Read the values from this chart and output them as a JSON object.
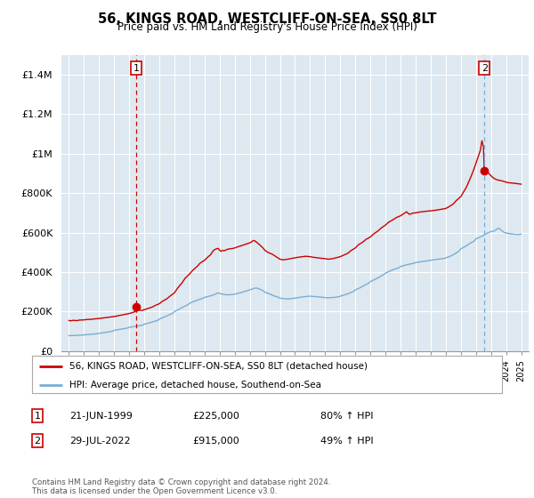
{
  "title": "56, KINGS ROAD, WESTCLIFF-ON-SEA, SS0 8LT",
  "subtitle": "Price paid vs. HM Land Registry's House Price Index (HPI)",
  "legend_label_red": "56, KINGS ROAD, WESTCLIFF-ON-SEA, SS0 8LT (detached house)",
  "legend_label_blue": "HPI: Average price, detached house, Southend-on-Sea",
  "annotation1_date": "21-JUN-1999",
  "annotation1_price": "£225,000",
  "annotation1_hpi": "80% ↑ HPI",
  "annotation1_year": 1999.47,
  "annotation1_value": 225000,
  "annotation2_date": "29-JUL-2022",
  "annotation2_price": "£915,000",
  "annotation2_hpi": "49% ↑ HPI",
  "annotation2_year": 2022.56,
  "annotation2_value": 915000,
  "ylabel_ticks": [
    "£0",
    "£200K",
    "£400K",
    "£600K",
    "£800K",
    "£1M",
    "£1.2M",
    "£1.4M"
  ],
  "ytick_values": [
    0,
    200000,
    400000,
    600000,
    800000,
    1000000,
    1200000,
    1400000
  ],
  "ylim": [
    0,
    1500000
  ],
  "xlim_start": 1994.5,
  "xlim_end": 2025.5,
  "chart_bg_color": "#dde8f0",
  "background_color": "#ffffff",
  "grid_color": "#ffffff",
  "red_color": "#cc0000",
  "blue_color": "#7aadd4",
  "dash1_color": "#cc0000",
  "dash2_color": "#7aadd4",
  "footer_text": "Contains HM Land Registry data © Crown copyright and database right 2024.\nThis data is licensed under the Open Government Licence v3.0.",
  "red_line_data": [
    [
      1995.0,
      155000
    ],
    [
      1995.1,
      153000
    ],
    [
      1995.3,
      156000
    ],
    [
      1995.5,
      154000
    ],
    [
      1995.7,
      157000
    ],
    [
      1996.0,
      158000
    ],
    [
      1996.2,
      160000
    ],
    [
      1996.5,
      161000
    ],
    [
      1996.7,
      163000
    ],
    [
      1997.0,
      165000
    ],
    [
      1997.2,
      167000
    ],
    [
      1997.5,
      170000
    ],
    [
      1997.7,
      172000
    ],
    [
      1998.0,
      175000
    ],
    [
      1998.2,
      178000
    ],
    [
      1998.5,
      182000
    ],
    [
      1998.7,
      185000
    ],
    [
      1999.0,
      190000
    ],
    [
      1999.2,
      195000
    ],
    [
      1999.4,
      200000
    ],
    [
      1999.47,
      225000
    ],
    [
      1999.6,
      210000
    ],
    [
      1999.8,
      205000
    ],
    [
      2000.0,
      210000
    ],
    [
      2000.2,
      215000
    ],
    [
      2000.5,
      222000
    ],
    [
      2000.7,
      230000
    ],
    [
      2001.0,
      240000
    ],
    [
      2001.2,
      252000
    ],
    [
      2001.5,
      265000
    ],
    [
      2001.7,
      278000
    ],
    [
      2002.0,
      295000
    ],
    [
      2002.2,
      318000
    ],
    [
      2002.5,
      345000
    ],
    [
      2002.7,
      368000
    ],
    [
      2003.0,
      390000
    ],
    [
      2003.2,
      408000
    ],
    [
      2003.5,
      428000
    ],
    [
      2003.7,
      445000
    ],
    [
      2004.0,
      460000
    ],
    [
      2004.2,
      475000
    ],
    [
      2004.4,
      488000
    ],
    [
      2004.5,
      500000
    ],
    [
      2004.6,
      510000
    ],
    [
      2004.7,
      515000
    ],
    [
      2004.8,
      518000
    ],
    [
      2004.9,
      520000
    ],
    [
      2005.0,
      510000
    ],
    [
      2005.1,
      505000
    ],
    [
      2005.2,
      510000
    ],
    [
      2005.3,
      508000
    ],
    [
      2005.5,
      515000
    ],
    [
      2005.7,
      518000
    ],
    [
      2005.9,
      520000
    ],
    [
      2006.0,
      522000
    ],
    [
      2006.1,
      525000
    ],
    [
      2006.2,
      528000
    ],
    [
      2006.3,
      530000
    ],
    [
      2006.5,
      535000
    ],
    [
      2006.7,
      540000
    ],
    [
      2006.9,
      545000
    ],
    [
      2007.0,
      548000
    ],
    [
      2007.1,
      552000
    ],
    [
      2007.2,
      558000
    ],
    [
      2007.3,
      560000
    ],
    [
      2007.5,
      548000
    ],
    [
      2007.7,
      535000
    ],
    [
      2007.9,
      520000
    ],
    [
      2008.0,
      510000
    ],
    [
      2008.2,
      500000
    ],
    [
      2008.5,
      490000
    ],
    [
      2008.7,
      480000
    ],
    [
      2009.0,
      465000
    ],
    [
      2009.2,
      462000
    ],
    [
      2009.5,
      465000
    ],
    [
      2009.7,
      468000
    ],
    [
      2010.0,
      472000
    ],
    [
      2010.2,
      475000
    ],
    [
      2010.5,
      478000
    ],
    [
      2010.7,
      480000
    ],
    [
      2011.0,
      478000
    ],
    [
      2011.2,
      475000
    ],
    [
      2011.5,
      472000
    ],
    [
      2011.7,
      470000
    ],
    [
      2012.0,
      468000
    ],
    [
      2012.2,
      465000
    ],
    [
      2012.5,
      468000
    ],
    [
      2012.7,
      472000
    ],
    [
      2013.0,
      478000
    ],
    [
      2013.2,
      485000
    ],
    [
      2013.5,
      495000
    ],
    [
      2013.7,
      508000
    ],
    [
      2014.0,
      522000
    ],
    [
      2014.2,
      538000
    ],
    [
      2014.5,
      552000
    ],
    [
      2014.7,
      565000
    ],
    [
      2015.0,
      578000
    ],
    [
      2015.2,
      592000
    ],
    [
      2015.5,
      608000
    ],
    [
      2015.7,
      622000
    ],
    [
      2016.0,
      638000
    ],
    [
      2016.2,
      652000
    ],
    [
      2016.5,
      665000
    ],
    [
      2016.7,
      675000
    ],
    [
      2017.0,
      685000
    ],
    [
      2017.2,
      695000
    ],
    [
      2017.3,
      700000
    ],
    [
      2017.4,
      705000
    ],
    [
      2017.5,
      698000
    ],
    [
      2017.6,
      692000
    ],
    [
      2017.7,
      695000
    ],
    [
      2017.8,
      698000
    ],
    [
      2018.0,
      700000
    ],
    [
      2018.2,
      703000
    ],
    [
      2018.5,
      706000
    ],
    [
      2018.7,
      708000
    ],
    [
      2019.0,
      710000
    ],
    [
      2019.2,
      712000
    ],
    [
      2019.5,
      715000
    ],
    [
      2019.7,
      718000
    ],
    [
      2020.0,
      722000
    ],
    [
      2020.2,
      730000
    ],
    [
      2020.5,
      745000
    ],
    [
      2020.7,
      762000
    ],
    [
      2021.0,
      782000
    ],
    [
      2021.2,
      808000
    ],
    [
      2021.3,
      820000
    ],
    [
      2021.4,
      835000
    ],
    [
      2021.5,
      852000
    ],
    [
      2021.6,
      870000
    ],
    [
      2021.7,
      888000
    ],
    [
      2021.8,
      908000
    ],
    [
      2021.9,
      928000
    ],
    [
      2022.0,
      950000
    ],
    [
      2022.1,
      972000
    ],
    [
      2022.2,
      995000
    ],
    [
      2022.3,
      1018000
    ],
    [
      2022.35,
      1042000
    ],
    [
      2022.4,
      1065000
    ],
    [
      2022.45,
      1050000
    ],
    [
      2022.5,
      1035000
    ],
    [
      2022.55,
      920000
    ],
    [
      2022.56,
      915000
    ],
    [
      2022.6,
      908000
    ],
    [
      2022.7,
      900000
    ],
    [
      2022.8,
      905000
    ],
    [
      2022.9,
      895000
    ],
    [
      2023.0,
      888000
    ],
    [
      2023.1,
      880000
    ],
    [
      2023.2,
      875000
    ],
    [
      2023.3,
      870000
    ],
    [
      2023.5,
      865000
    ],
    [
      2023.7,
      862000
    ],
    [
      2023.9,
      858000
    ],
    [
      2024.0,
      855000
    ],
    [
      2024.2,
      852000
    ],
    [
      2024.5,
      850000
    ],
    [
      2024.7,
      848000
    ],
    [
      2025.0,
      845000
    ]
  ],
  "blue_line_data": [
    [
      1995.0,
      78000
    ],
    [
      1995.3,
      79000
    ],
    [
      1995.6,
      80000
    ],
    [
      1995.9,
      81000
    ],
    [
      1996.0,
      82000
    ],
    [
      1996.3,
      84000
    ],
    [
      1996.6,
      86000
    ],
    [
      1996.9,
      88000
    ],
    [
      1997.0,
      90000
    ],
    [
      1997.3,
      93000
    ],
    [
      1997.6,
      97000
    ],
    [
      1997.9,
      101000
    ],
    [
      1998.0,
      105000
    ],
    [
      1998.3,
      109000
    ],
    [
      1998.6,
      113000
    ],
    [
      1998.9,
      117000
    ],
    [
      1999.0,
      120000
    ],
    [
      1999.3,
      124000
    ],
    [
      1999.6,
      128000
    ],
    [
      1999.9,
      132000
    ],
    [
      2000.0,
      136000
    ],
    [
      2000.3,
      142000
    ],
    [
      2000.6,
      149000
    ],
    [
      2000.9,
      156000
    ],
    [
      2001.0,
      162000
    ],
    [
      2001.3,
      172000
    ],
    [
      2001.6,
      182000
    ],
    [
      2001.9,
      192000
    ],
    [
      2002.0,
      200000
    ],
    [
      2002.3,
      212000
    ],
    [
      2002.6,
      224000
    ],
    [
      2002.9,
      235000
    ],
    [
      2003.0,
      242000
    ],
    [
      2003.3,
      252000
    ],
    [
      2003.6,
      260000
    ],
    [
      2003.9,
      268000
    ],
    [
      2004.0,
      272000
    ],
    [
      2004.3,
      278000
    ],
    [
      2004.5,
      282000
    ],
    [
      2004.6,
      285000
    ],
    [
      2004.7,
      288000
    ],
    [
      2004.8,
      292000
    ],
    [
      2004.9,
      295000
    ],
    [
      2005.0,
      292000
    ],
    [
      2005.2,
      288000
    ],
    [
      2005.4,
      285000
    ],
    [
      2005.6,
      285000
    ],
    [
      2005.8,
      286000
    ],
    [
      2006.0,
      288000
    ],
    [
      2006.2,
      292000
    ],
    [
      2006.5,
      298000
    ],
    [
      2006.7,
      303000
    ],
    [
      2007.0,
      310000
    ],
    [
      2007.2,
      316000
    ],
    [
      2007.4,
      320000
    ],
    [
      2007.5,
      318000
    ],
    [
      2007.7,
      312000
    ],
    [
      2007.9,
      305000
    ],
    [
      2008.0,
      298000
    ],
    [
      2008.3,
      290000
    ],
    [
      2008.6,
      280000
    ],
    [
      2008.9,
      272000
    ],
    [
      2009.0,
      268000
    ],
    [
      2009.3,
      265000
    ],
    [
      2009.5,
      264000
    ],
    [
      2009.7,
      265000
    ],
    [
      2010.0,
      268000
    ],
    [
      2010.3,
      272000
    ],
    [
      2010.6,
      275000
    ],
    [
      2010.9,
      278000
    ],
    [
      2011.0,
      278000
    ],
    [
      2011.3,
      276000
    ],
    [
      2011.6,
      274000
    ],
    [
      2011.9,
      272000
    ],
    [
      2012.0,
      270000
    ],
    [
      2012.3,
      270000
    ],
    [
      2012.6,
      272000
    ],
    [
      2012.9,
      275000
    ],
    [
      2013.0,
      278000
    ],
    [
      2013.3,
      285000
    ],
    [
      2013.6,
      293000
    ],
    [
      2013.9,
      303000
    ],
    [
      2014.0,
      310000
    ],
    [
      2014.3,
      320000
    ],
    [
      2014.6,
      333000
    ],
    [
      2014.9,
      345000
    ],
    [
      2015.0,
      352000
    ],
    [
      2015.3,
      363000
    ],
    [
      2015.6,
      375000
    ],
    [
      2015.9,
      388000
    ],
    [
      2016.0,
      395000
    ],
    [
      2016.3,
      405000
    ],
    [
      2016.6,
      415000
    ],
    [
      2016.9,
      422000
    ],
    [
      2017.0,
      428000
    ],
    [
      2017.3,
      435000
    ],
    [
      2017.6,
      440000
    ],
    [
      2017.9,
      445000
    ],
    [
      2018.0,
      448000
    ],
    [
      2018.3,
      452000
    ],
    [
      2018.6,
      455000
    ],
    [
      2018.9,
      458000
    ],
    [
      2019.0,
      460000
    ],
    [
      2019.3,
      463000
    ],
    [
      2019.6,
      466000
    ],
    [
      2019.9,
      469000
    ],
    [
      2020.0,
      472000
    ],
    [
      2020.3,
      480000
    ],
    [
      2020.6,
      492000
    ],
    [
      2020.9,
      508000
    ],
    [
      2021.0,
      518000
    ],
    [
      2021.3,
      530000
    ],
    [
      2021.6,
      545000
    ],
    [
      2021.9,
      558000
    ],
    [
      2022.0,
      568000
    ],
    [
      2022.3,
      578000
    ],
    [
      2022.5,
      585000
    ],
    [
      2022.56,
      588000
    ],
    [
      2022.7,
      595000
    ],
    [
      2022.9,
      602000
    ],
    [
      2023.0,
      605000
    ],
    [
      2023.2,
      608000
    ],
    [
      2023.3,
      612000
    ],
    [
      2023.4,
      618000
    ],
    [
      2023.5,
      622000
    ],
    [
      2023.6,
      618000
    ],
    [
      2023.7,
      610000
    ],
    [
      2023.8,
      605000
    ],
    [
      2023.9,
      600000
    ],
    [
      2024.0,
      598000
    ],
    [
      2024.2,
      595000
    ],
    [
      2024.5,
      592000
    ],
    [
      2024.7,
      590000
    ],
    [
      2025.0,
      592000
    ]
  ]
}
